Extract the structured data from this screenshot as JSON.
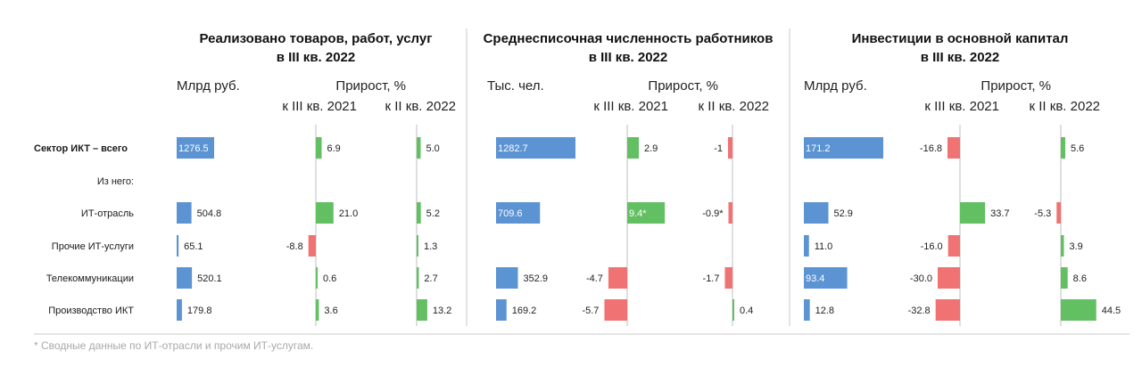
{
  "colors": {
    "blue": "#5b93d3",
    "green": "#62bf62",
    "red": "#f07272",
    "axis": "#bfbfbf",
    "divider": "#c8c8c8"
  },
  "rows": [
    "Сектор ИКТ – всего",
    "Из него:",
    "ИТ-отрасль",
    "Прочие ИТ-услуги",
    "Телекоммуникации",
    "Производство ИКТ"
  ],
  "footnote": "* Сводные данные по ИТ-отрасли и прочим ИТ-услугам.",
  "chart_data": [
    {
      "type": "bar",
      "title": [
        "Реализовано товаров, работ, услуг",
        "в III кв. 2022"
      ],
      "columns": [
        {
          "header": "Млрд руб.",
          "values": [
            1276.5,
            null,
            504.8,
            65.1,
            520.1,
            179.8
          ],
          "labels": [
            "1276.5",
            "",
            "504.8",
            "65.1",
            "520.1",
            "179.8"
          ]
        },
        {
          "header_group": "Прирост, %",
          "header": "к III кв. 2021",
          "values": [
            6.9,
            null,
            21.0,
            -8.8,
            0.6,
            3.6
          ],
          "labels": [
            "6.9",
            "",
            "21.0",
            "-8.8",
            "0.6",
            "3.6"
          ]
        },
        {
          "header": "к II кв. 2022",
          "values": [
            5.0,
            null,
            5.2,
            1.3,
            2.7,
            13.2
          ],
          "labels": [
            "5.0",
            "",
            "5.2",
            "1.3",
            "2.7",
            "13.2"
          ]
        }
      ]
    },
    {
      "type": "bar",
      "title": [
        "Среднесписочная численность работников",
        "в III кв. 2022"
      ],
      "columns": [
        {
          "header": "Тыс. чел.",
          "values": [
            1282.7,
            null,
            709.6,
            null,
            352.9,
            169.2
          ],
          "labels": [
            "1282.7",
            "",
            "709.6",
            "",
            "352.9",
            "169.2"
          ]
        },
        {
          "header_group": "Прирост, %",
          "header": "к III кв. 2021",
          "values": [
            2.9,
            null,
            9.4,
            null,
            -4.7,
            -5.7
          ],
          "labels": [
            "2.9",
            "",
            "9.4*",
            "",
            "-4.7",
            "-5.7"
          ]
        },
        {
          "header": "к II кв. 2022",
          "values": [
            -1.0,
            null,
            -0.9,
            null,
            -1.7,
            0.4
          ],
          "labels": [
            "-1",
            "",
            "-0.9*",
            "",
            "-1.7",
            "0.4"
          ]
        }
      ]
    },
    {
      "type": "bar",
      "title": [
        "Инвестиции в основной капитал",
        "в III кв. 2022"
      ],
      "columns": [
        {
          "header": "Млрд руб.",
          "values": [
            171.2,
            null,
            52.9,
            11.0,
            93.4,
            12.8
          ],
          "labels": [
            "171.2",
            "",
            "52.9",
            "11.0",
            "93.4",
            "12.8"
          ]
        },
        {
          "header_group": "Прирост, %",
          "header": "к III кв. 2021",
          "values": [
            -16.8,
            null,
            33.7,
            -16.0,
            -30.0,
            -32.8
          ],
          "labels": [
            "-16.8",
            "",
            "33.7",
            "-16.0",
            "-30.0",
            "-32.8"
          ]
        },
        {
          "header": "к II кв. 2022",
          "values": [
            5.6,
            null,
            -5.3,
            3.9,
            8.6,
            44.5
          ],
          "labels": [
            "5.6",
            "",
            "-5.3",
            "3.9",
            "8.6",
            "44.5"
          ]
        }
      ]
    }
  ]
}
